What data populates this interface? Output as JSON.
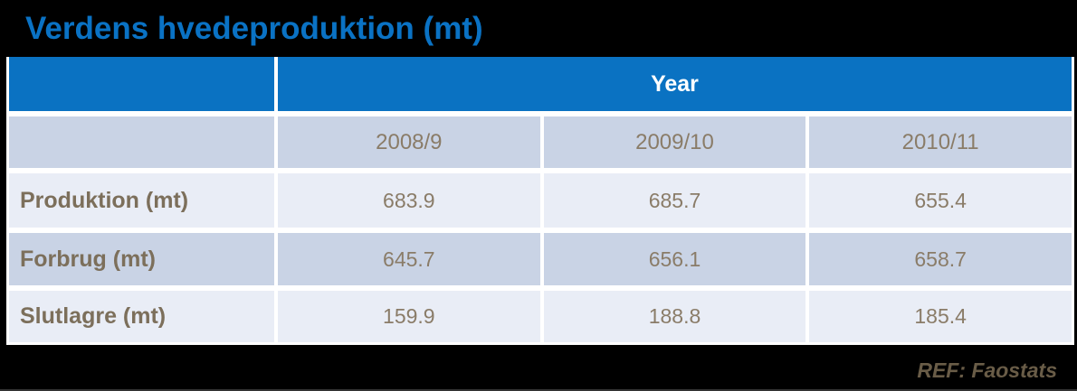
{
  "title": "Verdens hvedeproduktion (mt)",
  "table": {
    "year_header": "Year",
    "columns": [
      "2008/9",
      "2009/10",
      "2010/11"
    ],
    "rows": [
      {
        "label": "Produktion (mt)",
        "values": [
          "683.9",
          "685.7",
          "655.4"
        ]
      },
      {
        "label": "Forbrug (mt)",
        "values": [
          "645.7",
          "656.1",
          "658.7"
        ]
      },
      {
        "label": "Slutlagre (mt)",
        "values": [
          "159.9",
          "188.8",
          "185.4"
        ]
      }
    ]
  },
  "footer": {
    "ref_label": "REF: Faostats"
  },
  "colors": {
    "accent_blue": "#0a72c2",
    "band_dark": "#c9d3e5",
    "band_light": "#e9edf6",
    "header_text": "#ffffff",
    "label_text": "#7c6f5b",
    "value_text": "#8a7c68",
    "footer_text": "#695c47",
    "background": "#000000",
    "grid_lines": "#ffffff"
  },
  "chart_data": {
    "type": "table",
    "title": "Verdens hvedeproduktion (mt)",
    "column_group_header": "Year",
    "categories": [
      "2008/9",
      "2009/10",
      "2010/11"
    ],
    "series": [
      {
        "name": "Produktion (mt)",
        "values": [
          683.9,
          685.7,
          655.4
        ]
      },
      {
        "name": "Forbrug (mt)",
        "values": [
          645.7,
          656.1,
          658.7
        ]
      },
      {
        "name": "Slutlagre (mt)",
        "values": [
          159.9,
          188.8,
          185.4
        ]
      }
    ],
    "source": "REF: Faostats",
    "units": "mt"
  }
}
